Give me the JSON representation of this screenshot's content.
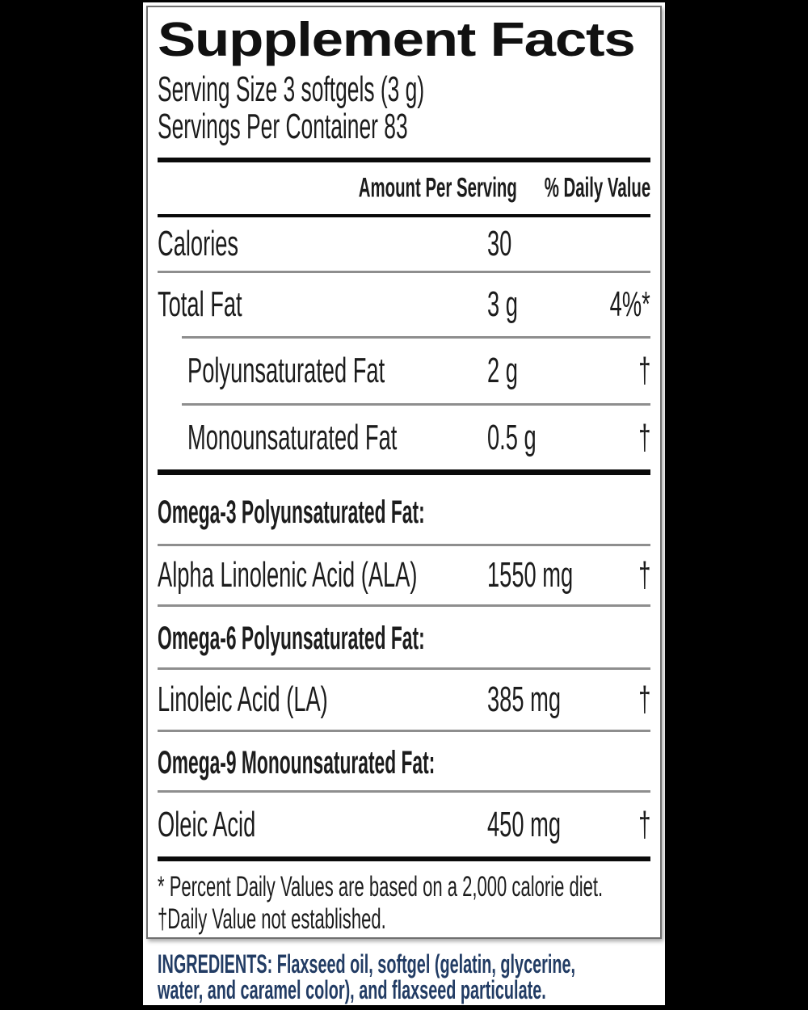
{
  "supplement_facts": {
    "title": "Supplement Facts",
    "serving_size": "Serving Size 3 softgels (3 g)",
    "servings_per_container": "Servings Per Container 83",
    "column_headers": {
      "amount": "Amount Per Serving",
      "daily_value": "% Daily Value"
    },
    "nutrients": [
      {
        "name": "Calories",
        "amount": "30",
        "daily_value": ""
      },
      {
        "name": "Total Fat",
        "amount": "3 g",
        "daily_value": "4%*"
      },
      {
        "name": "Polyunsaturated Fat",
        "amount": "2 g",
        "daily_value": "†"
      },
      {
        "name": "Monounsaturated Fat",
        "amount": "0.5 g",
        "daily_value": "†"
      }
    ],
    "sections": [
      {
        "heading": "Omega-3 Polyunsaturated Fat:",
        "nutrient": {
          "name": "Alpha Linolenic Acid (ALA)",
          "amount": "1550 mg",
          "daily_value": "†"
        }
      },
      {
        "heading": "Omega-6 Polyunsaturated Fat:",
        "nutrient": {
          "name": "Linoleic Acid (LA)",
          "amount": "385 mg",
          "daily_value": "†"
        }
      },
      {
        "heading": "Omega-9 Monounsaturated Fat:",
        "nutrient": {
          "name": "Oleic Acid",
          "amount": "450 mg",
          "daily_value": "†"
        }
      }
    ],
    "footnotes": [
      "* Percent Daily Values are based on a 2,000 calorie diet.",
      "†Daily Value not established."
    ]
  },
  "ingredients": {
    "lines": [
      "INGREDIENTS: Flaxseed oil, softgel (gelatin, glycerine,",
      "water, and caramel color), and flaxseed particulate."
    ]
  },
  "colors": {
    "background": "#000000",
    "panel": "#ffffff",
    "text": "#1c1c1c",
    "ingredients_text": "#223c64",
    "thick_rule": "#0a0a0a",
    "thin_rule": "#8e8e8e",
    "box_border": "#6f6f6f"
  }
}
